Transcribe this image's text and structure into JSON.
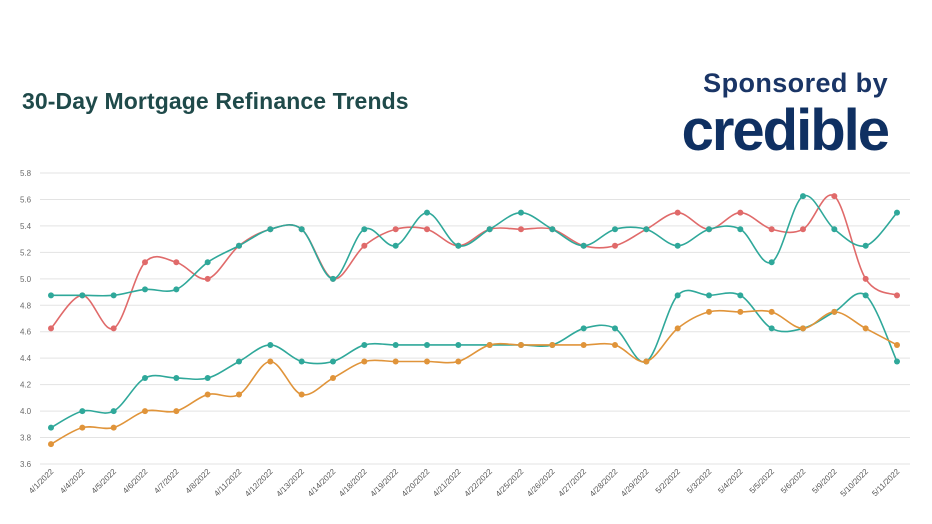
{
  "header": {
    "title": "30-Day Mortgage Refinance Trends",
    "sponsor_text": "Sponsored by",
    "sponsor_brand": "credible"
  },
  "chart_data": {
    "type": "line",
    "title": "30-Day Mortgage Refinance Trends",
    "xlabel": "",
    "ylabel": "",
    "ylim": [
      3.6,
      5.8
    ],
    "yticks": [
      3.6,
      3.8,
      4.0,
      4.2,
      4.4,
      4.6,
      4.8,
      5.0,
      5.2,
      5.4,
      5.6,
      5.8
    ],
    "grid": true,
    "legend": "none",
    "x": [
      "4/1/2022",
      "4/4/2022",
      "4/5/2022",
      "4/6/2022",
      "4/7/2022",
      "4/8/2022",
      "4/11/2022",
      "4/12/2022",
      "4/13/2022",
      "4/14/2022",
      "4/18/2022",
      "4/19/2022",
      "4/20/2022",
      "4/21/2022",
      "4/22/2022",
      "4/25/2022",
      "4/26/2022",
      "4/27/2022",
      "4/28/2022",
      "4/29/2022",
      "5/2/2022",
      "5/3/2022",
      "5/4/2022",
      "5/5/2022",
      "5/6/2022",
      "5/9/2022",
      "5/10/2022",
      "5/11/2022"
    ],
    "series": [
      {
        "color": "#e06a6a",
        "values": [
          4.625,
          4.875,
          4.625,
          5.125,
          5.125,
          5.0,
          5.25,
          5.375,
          5.375,
          5.0,
          5.25,
          5.375,
          5.375,
          5.25,
          5.375,
          5.375,
          5.375,
          5.25,
          5.25,
          5.375,
          5.5,
          5.375,
          5.5,
          5.375,
          5.375,
          5.625,
          5.0,
          4.875
        ]
      },
      {
        "color": "#2fa89a",
        "values": [
          4.875,
          4.875,
          4.875,
          4.92,
          4.92,
          5.125,
          5.25,
          5.375,
          5.375,
          5.0,
          5.375,
          5.25,
          5.5,
          5.25,
          5.375,
          5.5,
          5.375,
          5.25,
          5.375,
          5.375,
          5.25,
          5.375,
          5.375,
          5.125,
          5.625,
          5.375,
          5.25,
          5.5
        ]
      },
      {
        "color": "#2fa89a",
        "values": [
          3.875,
          4.0,
          4.0,
          4.25,
          4.25,
          4.25,
          4.375,
          4.5,
          4.375,
          4.375,
          4.5,
          4.5,
          4.5,
          4.5,
          4.5,
          4.5,
          4.5,
          4.625,
          4.625,
          4.375,
          4.875,
          4.875,
          4.875,
          4.625,
          4.625,
          4.75,
          4.875,
          4.375
        ]
      },
      {
        "color": "#e0943a",
        "values": [
          3.75,
          3.875,
          3.875,
          4.0,
          4.0,
          4.125,
          4.125,
          4.375,
          4.125,
          4.25,
          4.375,
          4.375,
          4.375,
          4.375,
          4.5,
          4.5,
          4.5,
          4.5,
          4.5,
          4.375,
          4.625,
          4.75,
          4.75,
          4.75,
          4.625,
          4.75,
          4.625,
          4.5
        ]
      }
    ]
  }
}
